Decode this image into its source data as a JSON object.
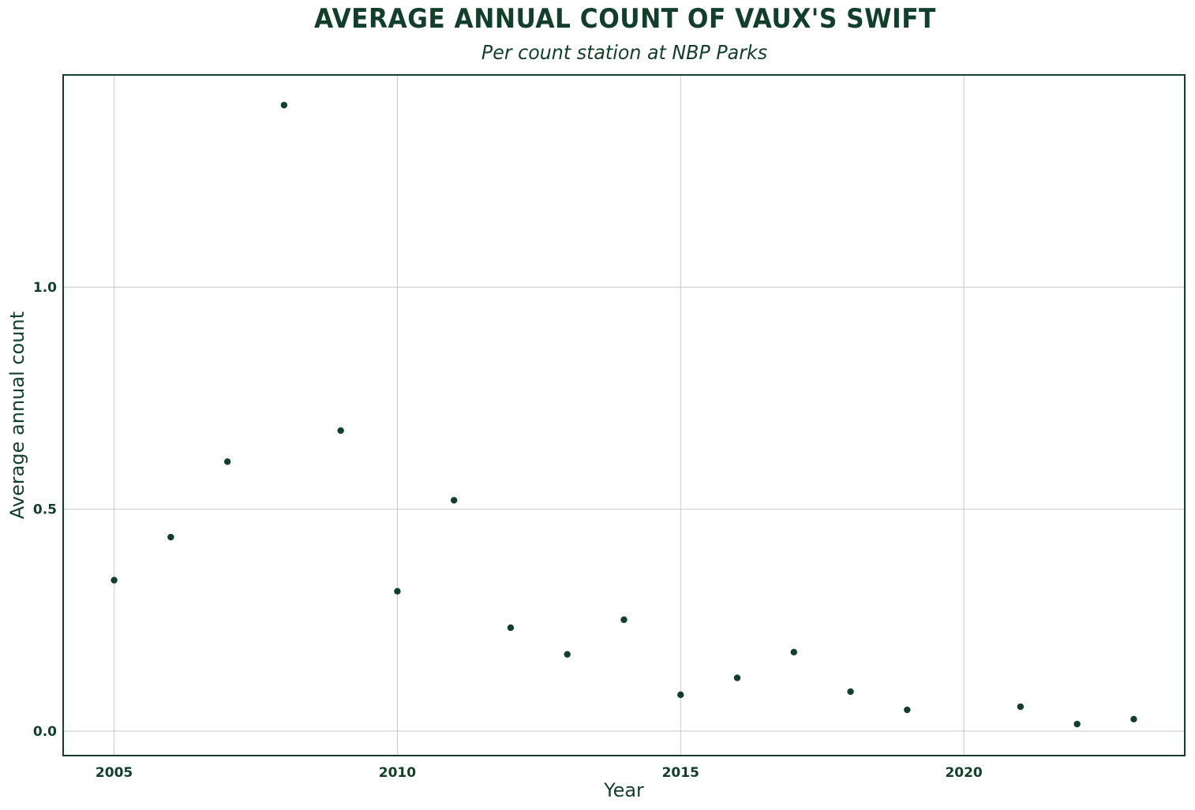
{
  "title": "AVERAGE ANNUAL COUNT OF VAUX'S SWIFT",
  "subtitle": "Per count station at NBP Parks",
  "colors": {
    "text": "#123f2b",
    "points": "#123f2b",
    "grid": "#c8c8c8",
    "frame": "#123f2b"
  },
  "chart_data": {
    "type": "scatter",
    "title": "AVERAGE ANNUAL COUNT OF VAUX'S SWIFT",
    "subtitle": "Per count station at NBP Parks",
    "xlabel": "Year",
    "ylabel": "Average annual count",
    "x": [
      2005,
      2006,
      2007,
      2008,
      2009,
      2010,
      2011,
      2012,
      2013,
      2014,
      2015,
      2016,
      2017,
      2018,
      2019,
      2021,
      2022,
      2023
    ],
    "y": [
      0.34,
      0.437,
      0.607,
      1.41,
      0.677,
      0.315,
      0.52,
      0.233,
      0.173,
      0.251,
      0.082,
      0.12,
      0.178,
      0.089,
      0.048,
      0.055,
      0.016,
      0.027
    ],
    "xlim": [
      2004.1,
      2023.9
    ],
    "ylim": [
      -0.055,
      1.478
    ],
    "xticks": [
      2005,
      2010,
      2015,
      2020
    ],
    "xtick_labels": [
      "2005",
      "2010",
      "2015",
      "2020"
    ],
    "yticks": [
      0.0,
      0.5,
      1.0
    ],
    "ytick_labels": [
      "0.0",
      "0.5",
      "1.0"
    ],
    "grid": true,
    "legend": "none"
  }
}
